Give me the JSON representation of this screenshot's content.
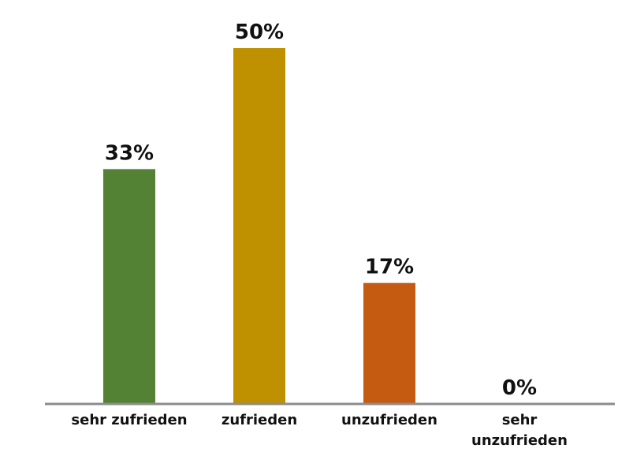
{
  "chart_data": {
    "type": "bar",
    "categories": [
      "sehr zufrieden",
      "zufrieden",
      "unzufrieden",
      "sehr unzufrieden"
    ],
    "values": [
      33,
      50,
      17,
      0
    ],
    "value_labels": [
      "33%",
      "50%",
      "17%",
      "0%"
    ],
    "colors": [
      "#548235",
      "#bf9000",
      "#c55a11",
      "#7f7f7f"
    ]
  }
}
